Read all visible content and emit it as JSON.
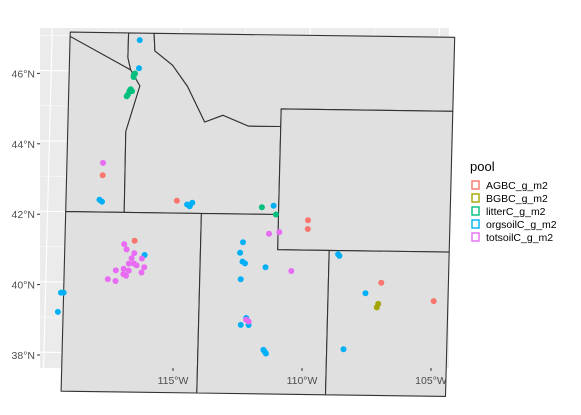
{
  "chart_data": {
    "type": "scatter",
    "title": "",
    "xlabel": "",
    "ylabel": "",
    "xlim": [
      -119.6,
      -104.5
    ],
    "ylim": [
      37.65,
      47.15
    ],
    "x_ticks": [
      {
        "value": -115,
        "label": "115°W"
      },
      {
        "value": -110,
        "label": "110°W"
      },
      {
        "value": -105,
        "label": "105°W"
      }
    ],
    "y_ticks": [
      {
        "value": 38,
        "label": "38°N"
      },
      {
        "value": 40,
        "label": "40°N"
      },
      {
        "value": 42,
        "label": "42°N"
      },
      {
        "value": 44,
        "label": "44°N"
      },
      {
        "value": 46,
        "label": "46°N"
      }
    ],
    "grid": true,
    "legend": {
      "title": "pool",
      "position": "right"
    },
    "series": [
      {
        "name": "AGBC_g_m2",
        "color": "#F8766D",
        "points": [
          [
            -117.9,
            43.05
          ],
          [
            -115.0,
            42.35
          ],
          [
            -116.6,
            41.2
          ],
          [
            -109.9,
            41.85
          ],
          [
            -109.9,
            41.6
          ],
          [
            -107.0,
            40.1
          ],
          [
            -104.95,
            39.6
          ]
        ]
      },
      {
        "name": "BGBC_g_m2",
        "color": "#A3A500",
        "points": [
          [
            -107.1,
            39.5
          ],
          [
            -107.15,
            39.4
          ]
        ]
      },
      {
        "name": "litterC_g_m2",
        "color": "#00BF7D",
        "points": [
          [
            -116.8,
            45.9
          ],
          [
            -116.75,
            45.95
          ],
          [
            -116.8,
            45.85
          ],
          [
            -116.9,
            45.5
          ],
          [
            -116.95,
            45.45
          ],
          [
            -117.0,
            45.35
          ],
          [
            -117.05,
            45.3
          ],
          [
            -116.85,
            45.45
          ],
          [
            -111.7,
            42.2
          ],
          [
            -111.15,
            42.0
          ]
        ]
      },
      {
        "name": "orgsoilC_g_m2",
        "color": "#00B0F6",
        "points": [
          [
            -116.6,
            46.9
          ],
          [
            -116.6,
            46.1
          ],
          [
            -118.0,
            42.35
          ],
          [
            -117.9,
            42.3
          ],
          [
            -114.6,
            42.25
          ],
          [
            -114.4,
            42.3
          ],
          [
            -114.5,
            42.2
          ],
          [
            -111.25,
            42.25
          ],
          [
            -112.4,
            41.2
          ],
          [
            -112.5,
            40.9
          ],
          [
            -112.4,
            40.65
          ],
          [
            -112.3,
            40.6
          ],
          [
            -111.5,
            40.5
          ],
          [
            -112.45,
            40.15
          ],
          [
            -116.2,
            40.8
          ],
          [
            -119.4,
            39.7
          ],
          [
            -119.3,
            39.7
          ],
          [
            -119.5,
            39.15
          ],
          [
            -112.4,
            38.85
          ],
          [
            -112.2,
            39.05
          ],
          [
            -112.1,
            38.85
          ],
          [
            -111.5,
            38.15
          ],
          [
            -111.45,
            38.1
          ],
          [
            -111.4,
            38.05
          ],
          [
            -108.4,
            38.2
          ],
          [
            -108.7,
            40.9
          ],
          [
            -108.65,
            40.85
          ],
          [
            -107.6,
            39.8
          ]
        ]
      },
      {
        "name": "totsoilC_g_m2",
        "color": "#E76BF3",
        "points": [
          [
            -117.9,
            43.4
          ],
          [
            -111.4,
            41.45
          ],
          [
            -111.0,
            41.5
          ],
          [
            -110.5,
            40.4
          ],
          [
            -112.2,
            39.0
          ],
          [
            -112.1,
            38.95
          ],
          [
            -117.0,
            41.1
          ],
          [
            -116.9,
            40.95
          ],
          [
            -116.6,
            40.85
          ],
          [
            -116.7,
            40.7
          ],
          [
            -116.3,
            40.7
          ],
          [
            -116.8,
            40.55
          ],
          [
            -117.0,
            40.4
          ],
          [
            -116.8,
            40.35
          ],
          [
            -116.5,
            40.5
          ],
          [
            -116.2,
            40.45
          ],
          [
            -116.3,
            40.3
          ],
          [
            -117.3,
            40.35
          ],
          [
            -117.0,
            40.25
          ],
          [
            -117.6,
            40.1
          ],
          [
            -117.3,
            40.05
          ],
          [
            -116.6,
            40.55
          ],
          [
            -116.9,
            40.2
          ]
        ]
      }
    ]
  }
}
